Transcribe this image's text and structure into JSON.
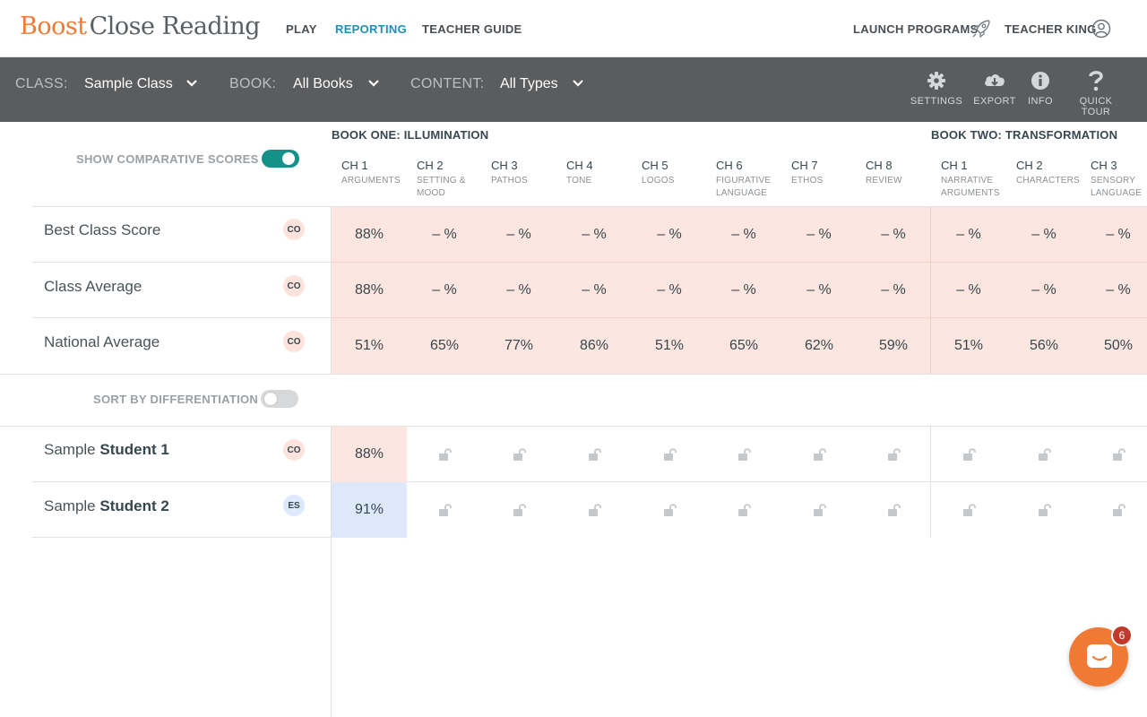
{
  "brand": {
    "boost": "Boost",
    "close_reading": "Close Reading",
    "color": "#ef7a34"
  },
  "nav": {
    "items": [
      {
        "label": "PLAY",
        "active": false
      },
      {
        "label": "REPORTING",
        "active": true
      },
      {
        "label": "TEACHER GUIDE",
        "active": false
      }
    ],
    "launch_programs": "LAUNCH PROGRAMS",
    "user": "TEACHER KING",
    "active_color": "#1f8fb5"
  },
  "filters": {
    "class_label": "CLASS:",
    "class_value": "Sample Class",
    "book_label": "BOOK:",
    "book_value": "All Books",
    "content_label": "CONTENT:",
    "content_value": "All Types"
  },
  "tools": {
    "settings": "SETTINGS",
    "export": "EXPORT",
    "info": "INFO",
    "quick_tour": "QUICK TOUR"
  },
  "toggles": {
    "comparative": {
      "label": "SHOW COMPARATIVE SCORES",
      "on": true
    },
    "differentiation": {
      "label": "SORT BY DIFFERENTIATION",
      "on": false
    }
  },
  "books": [
    {
      "title": "BOOK ONE: ILLUMINATION"
    },
    {
      "title": "BOOK TWO: TRANSFORMATION"
    }
  ],
  "chapters": [
    {
      "ch": "CH 1",
      "sub": [
        "ARGUMENTS"
      ]
    },
    {
      "ch": "CH 2",
      "sub": [
        "SETTING &",
        "MOOD"
      ]
    },
    {
      "ch": "CH 3",
      "sub": [
        "PATHOS"
      ]
    },
    {
      "ch": "CH 4",
      "sub": [
        "TONE"
      ]
    },
    {
      "ch": "CH 5",
      "sub": [
        "LOGOS"
      ]
    },
    {
      "ch": "CH 6",
      "sub": [
        "FIGURATIVE",
        "LANGUAGE"
      ]
    },
    {
      "ch": "CH 7",
      "sub": [
        "ETHOS"
      ]
    },
    {
      "ch": "CH 8",
      "sub": [
        "REVIEW"
      ]
    },
    {
      "ch": "CH 1",
      "sub": [
        "NARRATIVE",
        "ARGUMENTS"
      ]
    },
    {
      "ch": "CH 2",
      "sub": [
        "CHARACTERS"
      ]
    },
    {
      "ch": "CH 3",
      "sub": [
        "SENSORY",
        "LANGUAGE"
      ]
    }
  ],
  "comparative_rows": [
    {
      "label": "Best Class Score",
      "badge": "CO",
      "values": [
        "88%",
        "– %",
        "– %",
        "– %",
        "– %",
        "– %",
        "– %",
        "– %",
        "– %",
        "– %",
        "– %"
      ]
    },
    {
      "label": "Class Average",
      "badge": "CO",
      "values": [
        "88%",
        "– %",
        "– %",
        "– %",
        "– %",
        "– %",
        "– %",
        "– %",
        "– %",
        "– %",
        "– %"
      ]
    },
    {
      "label": "National Average",
      "badge": "CO",
      "values": [
        "51%",
        "65%",
        "77%",
        "86%",
        "51%",
        "65%",
        "62%",
        "59%",
        "51%",
        "56%",
        "50%"
      ]
    }
  ],
  "students": [
    {
      "first": "Sample",
      "last": "Student 1",
      "badge": "CO",
      "score": "88%",
      "score_tone": "pink",
      "locked_count": 10
    },
    {
      "first": "Sample",
      "last": "Student 2",
      "badge": "ES",
      "score": "91%",
      "score_tone": "blue",
      "locked_count": 10
    }
  ],
  "chat": {
    "badge_count": "6",
    "color": "#f07a33"
  },
  "icons": {
    "rocket": "rocket-icon",
    "user": "user-circle-icon",
    "chevron": "chevron-down-icon",
    "settings": "gear-icon",
    "export": "cloud-download-icon",
    "info": "info-icon",
    "quick_tour": "question-mark-icon",
    "lock": "unlocked-lock-icon",
    "chat": "chat-icon"
  }
}
